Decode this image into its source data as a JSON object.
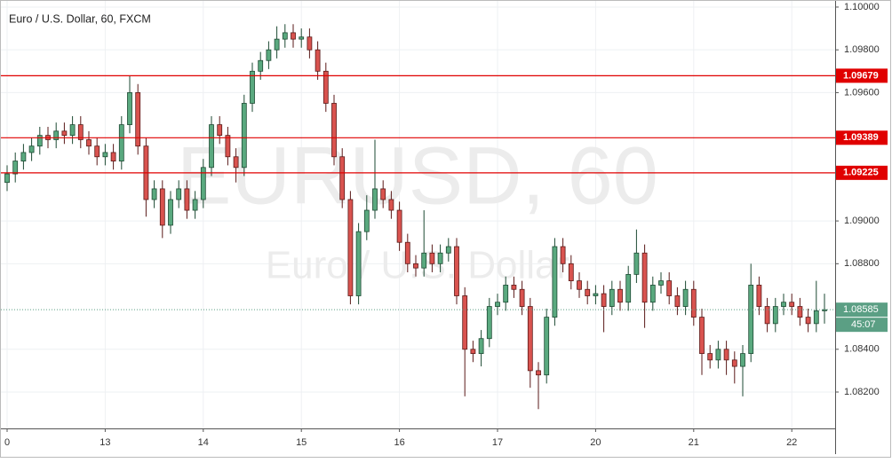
{
  "chart_data": {
    "type": "candlestick",
    "title": "Euro / U.S. Dollar, 60, FXCM",
    "watermark": "EURUSD, 60",
    "watermark_subtitle": "Euro / U.S. Dollar",
    "up_color": "#5aa97f",
    "down_color": "#d9534f",
    "grid": true,
    "categories": [
      "0",
      null,
      null,
      null,
      null,
      null,
      null,
      null,
      null,
      null,
      null,
      null,
      "13",
      null,
      null,
      null,
      null,
      null,
      null,
      null,
      null,
      null,
      null,
      null,
      "14",
      null,
      null,
      null,
      null,
      null,
      null,
      null,
      null,
      null,
      null,
      null,
      "15",
      null,
      null,
      null,
      null,
      null,
      null,
      null,
      null,
      null,
      null,
      null,
      "16",
      null,
      null,
      null,
      null,
      null,
      null,
      null,
      null,
      null,
      null,
      null,
      "17",
      null,
      null,
      null,
      null,
      null,
      null,
      null,
      null,
      null,
      null,
      null,
      "20",
      null,
      null,
      null,
      null,
      null,
      null,
      null,
      null,
      null,
      null,
      null,
      "21",
      null,
      null,
      null,
      null,
      null,
      null,
      null,
      null,
      null,
      null,
      null,
      "22",
      null,
      null,
      null,
      null
    ],
    "open": [
      1.0918,
      1.0922,
      1.0928,
      1.0932,
      1.0935,
      1.094,
      1.0938,
      1.0942,
      1.094,
      1.0945,
      1.0938,
      1.0935,
      1.093,
      1.0932,
      1.0928,
      1.0945,
      1.096,
      1.0935,
      1.091,
      1.0915,
      1.0898,
      1.091,
      1.0915,
      1.0905,
      1.091,
      1.0925,
      1.0945,
      1.094,
      1.093,
      1.0925,
      1.0955,
      1.097,
      1.0975,
      1.098,
      1.0985,
      1.0988,
      1.0985,
      1.0986,
      1.098,
      1.097,
      1.0955,
      1.093,
      1.091,
      1.0865,
      1.0895,
      1.0905,
      1.0915,
      1.091,
      1.0905,
      1.089,
      1.088,
      1.0878,
      1.0885,
      1.088,
      1.0885,
      1.0888,
      1.0865,
      1.084,
      1.0838,
      1.0845,
      1.086,
      1.0862,
      1.087,
      1.0868,
      1.086,
      1.083,
      1.0828,
      1.0855,
      1.0888,
      1.088,
      1.0872,
      1.0868,
      1.0865,
      1.0866,
      1.086,
      1.0868,
      1.0862,
      1.0875,
      1.0885,
      1.0862,
      1.087,
      1.0872,
      1.0865,
      1.086,
      1.0868,
      1.0855,
      1.0838,
      1.0835,
      1.084,
      1.0835,
      1.0832,
      1.0838,
      1.087,
      1.086,
      1.0852,
      1.086,
      1.0862,
      1.086,
      1.0855,
      1.0852,
      1.0858
    ],
    "high": [
      1.0926,
      1.0932,
      1.0936,
      1.0939,
      1.0944,
      1.0944,
      1.0946,
      1.0946,
      1.0949,
      1.0949,
      1.0942,
      1.0939,
      1.0936,
      1.0936,
      1.0949,
      1.0968,
      1.0964,
      1.0939,
      1.0919,
      1.0919,
      1.0914,
      1.0919,
      1.0919,
      1.0914,
      1.0929,
      1.0949,
      1.0949,
      1.0944,
      1.0934,
      1.0959,
      1.0974,
      1.0979,
      1.0984,
      1.0991,
      1.0992,
      1.0992,
      1.099,
      1.099,
      1.0984,
      1.0974,
      1.0959,
      1.0934,
      1.0914,
      1.0899,
      1.0912,
      1.0938,
      1.0919,
      1.0914,
      1.0909,
      1.0894,
      1.0884,
      1.0905,
      1.0889,
      1.0889,
      1.0892,
      1.0892,
      1.0869,
      1.0844,
      1.0849,
      1.0864,
      1.0866,
      1.0874,
      1.0874,
      1.0872,
      1.0864,
      1.0834,
      1.0859,
      1.0892,
      1.0892,
      1.0884,
      1.0876,
      1.0872,
      1.087,
      1.087,
      1.0872,
      1.0872,
      1.0879,
      1.0896,
      1.0889,
      1.0874,
      1.0876,
      1.0876,
      1.0869,
      1.0872,
      1.0872,
      1.0859,
      1.0842,
      1.0844,
      1.0844,
      1.0839,
      1.0842,
      1.088,
      1.0874,
      1.0864,
      1.0864,
      1.0866,
      1.0866,
      1.0864,
      1.0859,
      1.0872,
      1.0866
    ],
    "low": [
      1.0914,
      1.0918,
      1.0924,
      1.0928,
      1.0931,
      1.0934,
      1.0934,
      1.0936,
      1.0936,
      1.0934,
      1.0931,
      1.0926,
      1.0926,
      1.0924,
      1.0924,
      1.0941,
      1.0931,
      1.0902,
      1.0906,
      1.0892,
      1.0894,
      1.0906,
      1.0901,
      1.0901,
      1.0906,
      1.0921,
      1.0936,
      1.0926,
      1.0918,
      1.0921,
      1.0951,
      1.0966,
      1.0971,
      1.0976,
      1.0981,
      1.0981,
      1.0981,
      1.0976,
      1.0966,
      1.0951,
      1.0926,
      1.0906,
      1.0861,
      1.0861,
      1.0891,
      1.0901,
      1.0906,
      1.0901,
      1.0886,
      1.0876,
      1.0874,
      1.0874,
      1.0876,
      1.0876,
      1.0881,
      1.0861,
      1.0818,
      1.0834,
      1.0832,
      1.0841,
      1.0856,
      1.0858,
      1.0864,
      1.0856,
      1.0822,
      1.0812,
      1.0824,
      1.0851,
      1.0876,
      1.0868,
      1.0864,
      1.0861,
      1.0861,
      1.0848,
      1.0856,
      1.0858,
      1.0858,
      1.0871,
      1.085,
      1.0858,
      1.0866,
      1.0861,
      1.0856,
      1.0856,
      1.0851,
      1.0828,
      1.0831,
      1.0831,
      1.0828,
      1.0824,
      1.0818,
      1.0834,
      1.0856,
      1.0848,
      1.0848,
      1.0856,
      1.0856,
      1.0851,
      1.0848,
      1.0848,
      1.0852
    ],
    "close": [
      1.0922,
      1.0928,
      1.0932,
      1.0935,
      1.094,
      1.0938,
      1.0942,
      1.094,
      1.0945,
      1.0938,
      1.0935,
      1.093,
      1.0932,
      1.0928,
      1.0945,
      1.096,
      1.0935,
      1.091,
      1.0915,
      1.0898,
      1.091,
      1.0915,
      1.0905,
      1.091,
      1.0925,
      1.0945,
      1.094,
      1.093,
      1.0925,
      1.0955,
      1.097,
      1.0975,
      1.098,
      1.0985,
      1.0988,
      1.0985,
      1.0986,
      1.098,
      1.097,
      1.0955,
      1.093,
      1.091,
      1.0865,
      1.0895,
      1.0905,
      1.0915,
      1.091,
      1.0905,
      1.089,
      1.088,
      1.0878,
      1.0885,
      1.088,
      1.0885,
      1.0888,
      1.0865,
      1.084,
      1.0838,
      1.0845,
      1.086,
      1.0862,
      1.087,
      1.0868,
      1.086,
      1.083,
      1.0828,
      1.0855,
      1.0888,
      1.088,
      1.0872,
      1.0868,
      1.0865,
      1.0866,
      1.086,
      1.0868,
      1.0862,
      1.0875,
      1.0885,
      1.0862,
      1.087,
      1.0872,
      1.0865,
      1.086,
      1.0868,
      1.0855,
      1.0838,
      1.0835,
      1.084,
      1.0835,
      1.0832,
      1.0838,
      1.087,
      1.086,
      1.0852,
      1.086,
      1.0862,
      1.086,
      1.0855,
      1.0852,
      1.0858,
      1.08585
    ],
    "ylim": [
      1.0803,
      1.10033
    ],
    "yticks": [
      {
        "value": 1.1,
        "label": "1.10000"
      },
      {
        "value": 1.098,
        "label": "1.09800"
      },
      {
        "value": 1.096,
        "label": "1.09600"
      },
      {
        "value": 1.09,
        "label": "1.09000"
      },
      {
        "value": 1.088,
        "label": "1.08800"
      },
      {
        "value": 1.084,
        "label": "1.08400"
      },
      {
        "value": 1.082,
        "label": "1.08200"
      }
    ],
    "levels": [
      1.09679,
      1.09389,
      1.09225
    ],
    "level_color": "#e00000",
    "last_price": 1.08585,
    "last_price_color": "#5b9f84",
    "countdown": "45:07"
  }
}
